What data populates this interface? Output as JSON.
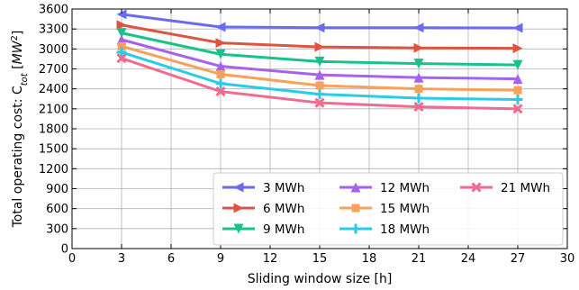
{
  "chart_data": {
    "type": "line",
    "xlabel": "Sliding window size [h]",
    "ylabel": "Total operating cost: C_tot [MW^2]",
    "xlim": [
      0,
      30
    ],
    "ylim": [
      0,
      3600
    ],
    "xticks": [
      0,
      3,
      6,
      9,
      12,
      15,
      18,
      21,
      24,
      27,
      30
    ],
    "yticks": [
      0,
      300,
      600,
      900,
      1200,
      1500,
      1800,
      2100,
      2400,
      2700,
      3000,
      3300,
      3600
    ],
    "grid": true,
    "legend": {
      "position": "lower-right",
      "columns": 3
    },
    "x": [
      3,
      9,
      15,
      21,
      27
    ],
    "series": [
      {
        "name": "3 MWh",
        "color": "#6b6bf0",
        "marker": "triangle-left",
        "values": [
          3520,
          3330,
          3320,
          3320,
          3315
        ]
      },
      {
        "name": "6 MWh",
        "color": "#e0533f",
        "marker": "triangle-right",
        "values": [
          3360,
          3090,
          3030,
          3015,
          3010
        ]
      },
      {
        "name": "9 MWh",
        "color": "#17c38b",
        "marker": "triangle-down",
        "values": [
          3240,
          2920,
          2810,
          2780,
          2760
        ]
      },
      {
        "name": "12 MWh",
        "color": "#a661ee",
        "marker": "triangle-up",
        "values": [
          3140,
          2740,
          2610,
          2570,
          2550
        ]
      },
      {
        "name": "15 MWh",
        "color": "#f8a15a",
        "marker": "square",
        "values": [
          3040,
          2620,
          2450,
          2400,
          2380
        ]
      },
      {
        "name": "18 MWh",
        "color": "#28cbe9",
        "marker": "plus",
        "values": [
          2950,
          2480,
          2320,
          2260,
          2240
        ]
      },
      {
        "name": "21 MWh",
        "color": "#f06b8f",
        "marker": "x",
        "values": [
          2860,
          2360,
          2190,
          2130,
          2100
        ]
      }
    ]
  }
}
